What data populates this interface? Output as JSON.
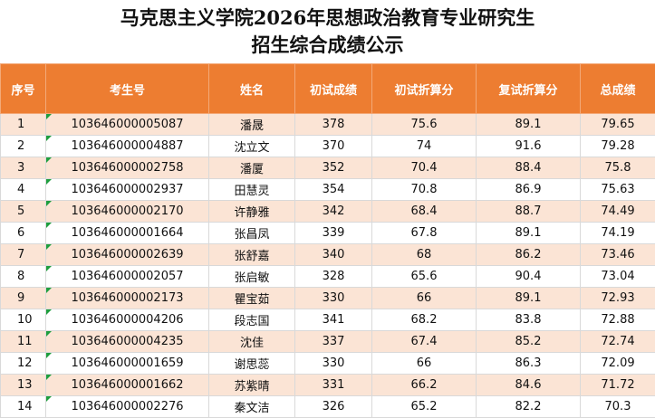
{
  "header": {
    "title_line1": "马克思主义学院2026年思想政治教育专业研究生",
    "title_line2": "招生综合成绩公示"
  },
  "table": {
    "columns": [
      "序号",
      "考生号",
      "姓名",
      "初试成绩",
      "初试折算分",
      "复试折算分",
      "总成绩"
    ],
    "rows": [
      [
        1,
        "103646000005087",
        "潘晟",
        378,
        75.6,
        89.1,
        79.65
      ],
      [
        2,
        "103646000004887",
        "沈立文",
        370,
        74,
        91.6,
        79.28
      ],
      [
        3,
        "103646000002758",
        "潘厦",
        352,
        70.4,
        88.4,
        75.8
      ],
      [
        4,
        "103646000002937",
        "田慧灵",
        354,
        70.8,
        86.9,
        75.63
      ],
      [
        5,
        "103646000002170",
        "许静雅",
        342,
        68.4,
        88.7,
        74.49
      ],
      [
        6,
        "103646000001664",
        "张昌凤",
        339,
        67.8,
        89.1,
        74.19
      ],
      [
        7,
        "103646000002639",
        "张舒嘉",
        340,
        68,
        86.2,
        73.46
      ],
      [
        8,
        "103646000002057",
        "张启敏",
        328,
        65.6,
        90.4,
        73.04
      ],
      [
        9,
        "103646000002173",
        "瞿宝茹",
        330,
        66,
        89.1,
        72.93
      ],
      [
        10,
        "103646000004206",
        "段志国",
        341,
        68.2,
        83.8,
        72.88
      ],
      [
        11,
        "103646000004235",
        "沈佳",
        337,
        67.4,
        85.2,
        72.74
      ],
      [
        12,
        "103646000001659",
        "谢思蕊",
        330,
        66,
        86.3,
        72.09
      ],
      [
        13,
        "103646000001662",
        "苏紫晴",
        331,
        66.2,
        84.6,
        71.72
      ],
      [
        14,
        "103646000002276",
        "秦文洁",
        326,
        65.2,
        82.2,
        70.3
      ]
    ]
  }
}
